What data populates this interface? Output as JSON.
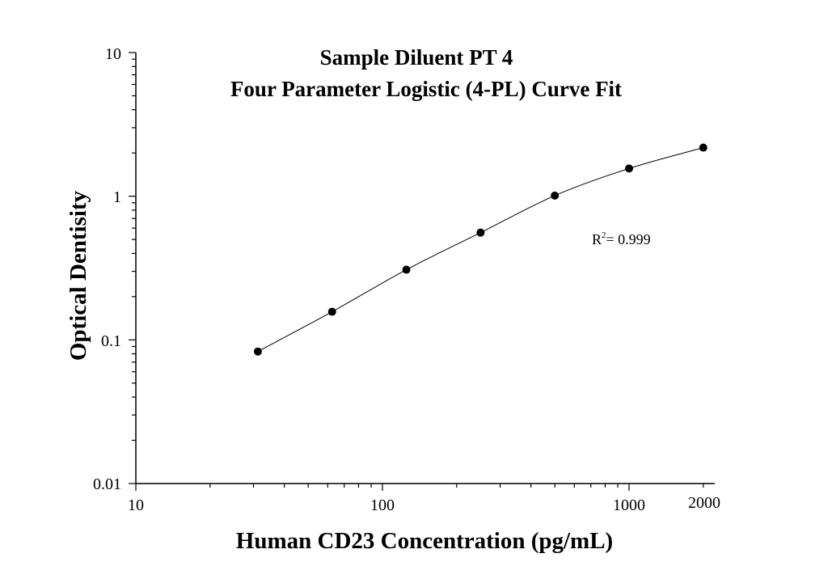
{
  "chart_data": {
    "type": "scatter",
    "title": "Sample Diluent PT 4",
    "subtitle": "Four Parameter Logistic (4-PL) Curve Fit",
    "xlabel": "Human CD23 Concentration (pg/mL)",
    "ylabel": "Optical Dentisity",
    "xscale": "log",
    "yscale": "log",
    "xlim": [
      10,
      2000
    ],
    "ylim": [
      0.01,
      10
    ],
    "x_tick_labels": [
      "10",
      "100",
      "1000",
      "2000"
    ],
    "y_tick_labels": [
      "10",
      "1",
      "0.1",
      "0.01"
    ],
    "grid": false,
    "legend": "none",
    "series": [
      {
        "x": [
          31.25,
          62.5,
          125,
          250,
          500,
          1000,
          2000
        ],
        "y": [
          0.083,
          0.157,
          0.308,
          0.558,
          1.01,
          1.56,
          2.18
        ]
      }
    ],
    "fit_curve": "4-PL",
    "annotation": {
      "r_label": "R",
      "r_sup": "2",
      "r_value": "= 0.999"
    }
  }
}
